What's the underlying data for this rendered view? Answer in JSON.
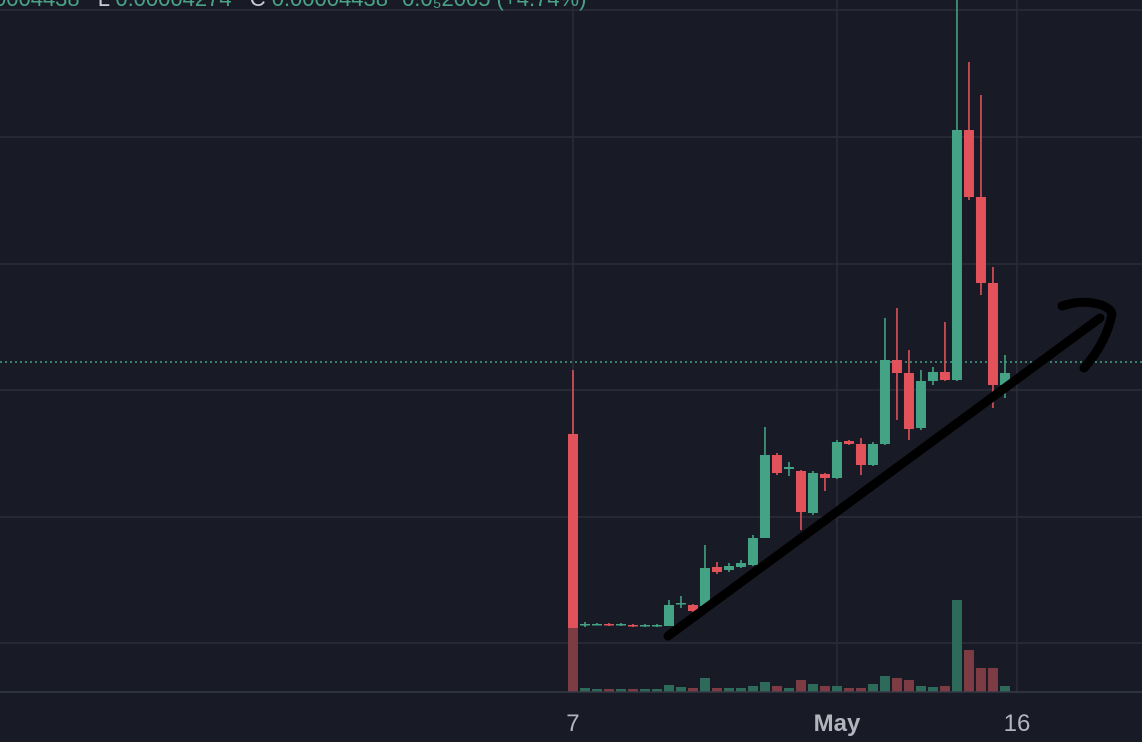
{
  "header": {
    "parts": [
      "0004438",
      "L",
      "0.00004274",
      "C",
      "0.00004438",
      "0.0₅2005 (+4.74%)"
    ]
  },
  "chart_data": {
    "type": "candlestick",
    "x": [
      0,
      1,
      2,
      3,
      4,
      5,
      6,
      7,
      8,
      9,
      10,
      11,
      12,
      13,
      14,
      15,
      16,
      17,
      18,
      19,
      20,
      21,
      22,
      23,
      24,
      25,
      26,
      27,
      28,
      29,
      30,
      31,
      32,
      33,
      34,
      35,
      36
    ],
    "open": [
      37.18,
      18.08,
      18.18,
      18.18,
      18.08,
      18.08,
      17.98,
      17.98,
      17.98,
      20.18,
      20.08,
      19.98,
      23.88,
      23.58,
      23.88,
      24.08,
      26.78,
      35.08,
      33.68,
      33.48,
      29.28,
      33.18,
      32.78,
      36.48,
      36.18,
      34.08,
      36.18,
      44.58,
      43.28,
      37.78,
      42.48,
      43.38,
      42.58,
      67.58,
      60.88,
      52.28,
      42.08
    ],
    "high": [
      43.58,
      18.38,
      18.28,
      18.28,
      18.28,
      18.18,
      18.18,
      18.18,
      20.58,
      20.98,
      20.18,
      26.08,
      24.38,
      24.28,
      24.58,
      27.08,
      37.88,
      35.28,
      34.38,
      33.58,
      33.48,
      33.28,
      36.58,
      36.58,
      36.78,
      36.38,
      48.78,
      49.78,
      45.58,
      43.58,
      43.88,
      48.38,
      80.58,
      74.38,
      71.08,
      53.88,
      45.08
    ],
    "low": [
      17.78,
      17.88,
      18.08,
      17.98,
      17.98,
      17.88,
      17.88,
      17.88,
      17.98,
      19.78,
      19.38,
      19.98,
      23.18,
      23.38,
      23.78,
      23.98,
      26.78,
      33.08,
      32.98,
      27.58,
      29.08,
      31.48,
      32.68,
      36.08,
      33.08,
      33.98,
      36.08,
      38.58,
      36.58,
      37.58,
      42.08,
      42.48,
      42.48,
      60.58,
      51.08,
      39.78,
      40.78
    ],
    "close": [
      17.78,
      18.18,
      18.18,
      18.08,
      18.18,
      17.98,
      18.08,
      18.08,
      20.08,
      20.28,
      19.48,
      23.78,
      23.38,
      23.98,
      24.28,
      26.78,
      35.08,
      33.28,
      33.88,
      29.38,
      33.28,
      32.78,
      36.38,
      36.18,
      34.08,
      36.18,
      44.58,
      43.28,
      37.68,
      42.48,
      43.38,
      42.58,
      67.58,
      60.88,
      52.28,
      42.08,
      43.28
    ],
    "volume": [
      64,
      4,
      3,
      3,
      3,
      3,
      3,
      3,
      7,
      5,
      4,
      14,
      4,
      4,
      4,
      6,
      10,
      6,
      4,
      12,
      8,
      6,
      6,
      4,
      4,
      8,
      16,
      14,
      12,
      6,
      5,
      6,
      92,
      42,
      24,
      24,
      6
    ],
    "xlim": [
      -47.75,
      47.42
    ],
    "xticks": [
      {
        "value": 0,
        "label": "7"
      },
      {
        "value": 22,
        "label": "May"
      },
      {
        "value": 37,
        "label": "16"
      }
    ],
    "ylim": [
      11.38,
      80.58
    ],
    "yticks": [
      16.28,
      28.88,
      41.58,
      54.18,
      66.88,
      79.58
    ],
    "volume_lim": [
      0,
      100
    ],
    "last_price_line": 44.38,
    "up_color": "#44a385",
    "down_color": "#e2525a",
    "volume_up_color": "#2d6a5a",
    "volume_down_color": "#7d3b43",
    "grid": true
  }
}
